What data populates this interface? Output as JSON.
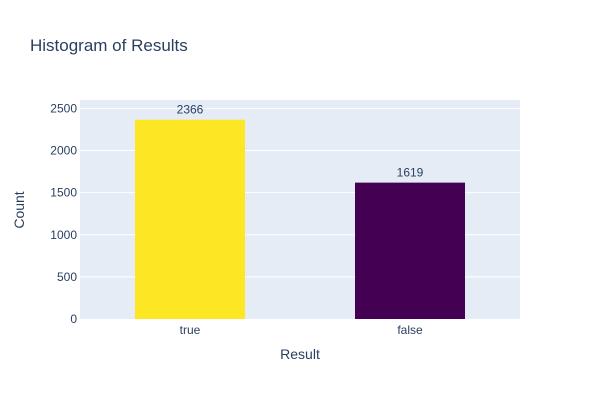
{
  "chart_data": {
    "type": "bar",
    "title": "Histogram of Results",
    "xlabel": "Result",
    "ylabel": "Count",
    "categories": [
      "true",
      "false"
    ],
    "values": [
      2366,
      1619
    ],
    "colors": [
      "#fde725",
      "#440154"
    ],
    "ylim": [
      0,
      2600
    ],
    "yticks": [
      0,
      500,
      1000,
      1500,
      2000,
      2500
    ],
    "grid": true,
    "legend": "none",
    "plot_background": "#e5ecf6"
  }
}
